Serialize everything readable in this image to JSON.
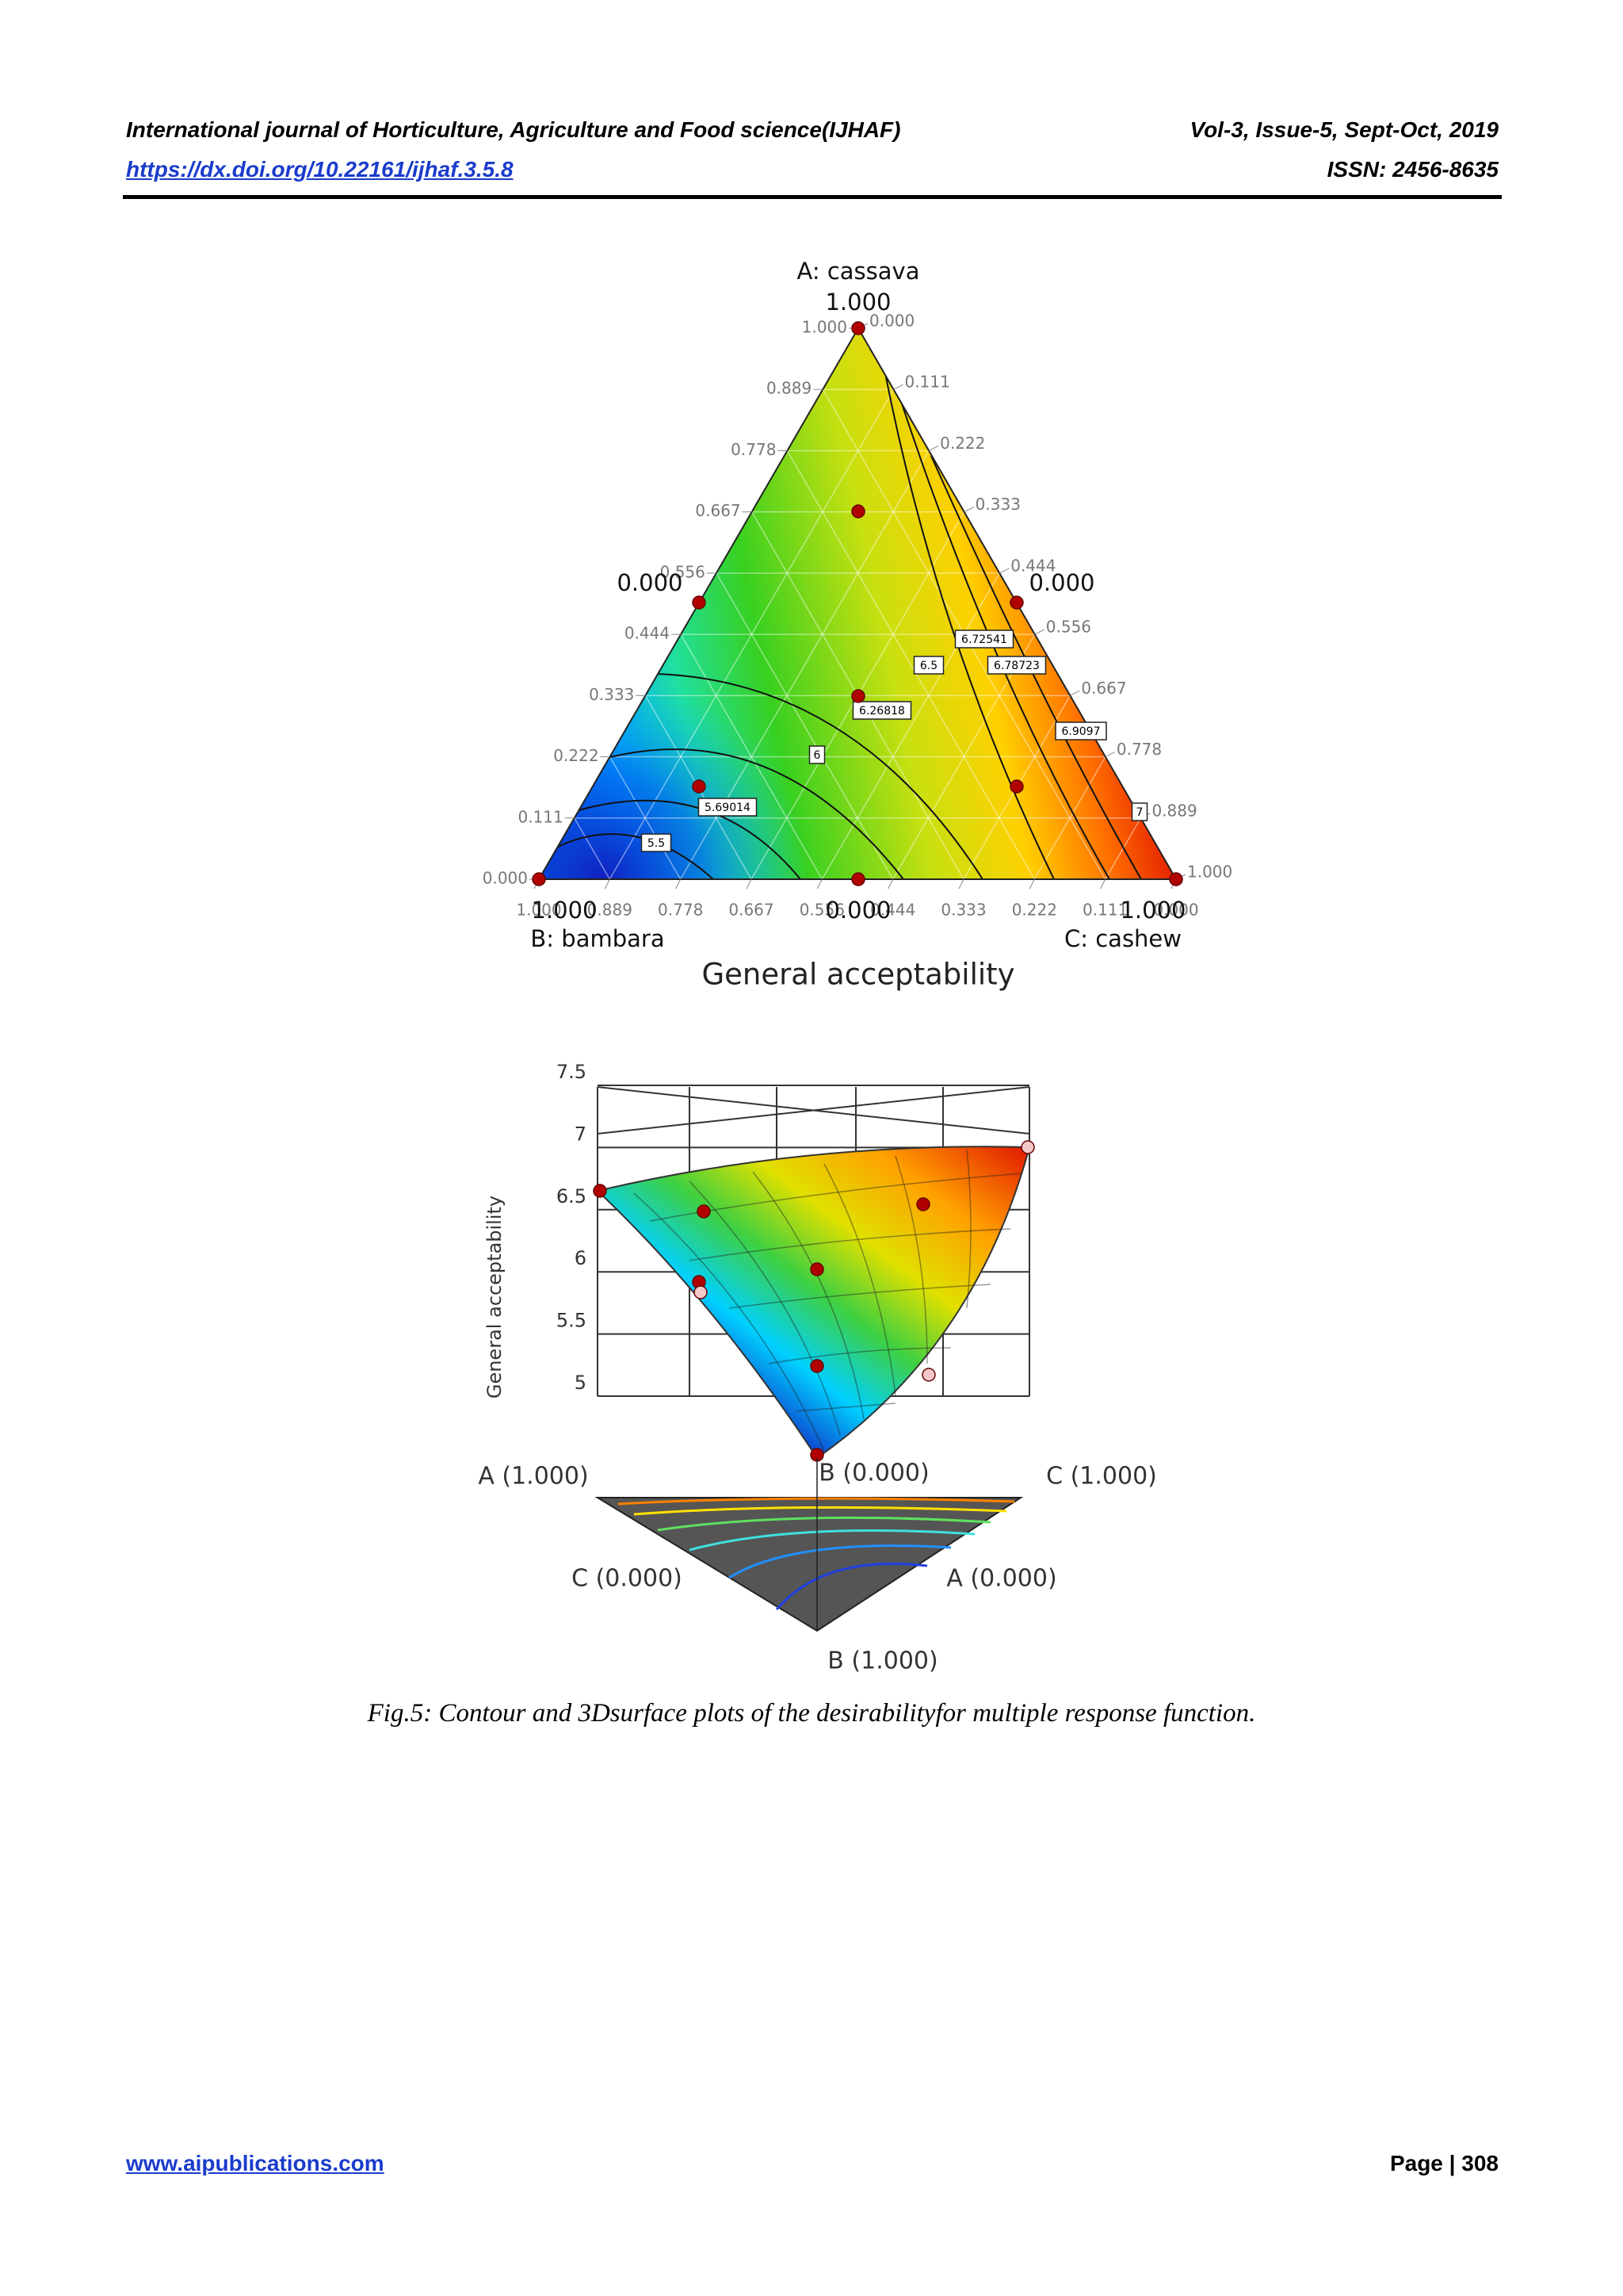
{
  "header": {
    "journal": "International journal of Horticulture, Agriculture and Food science(IJHAF)",
    "volume": "Vol-3, Issue-5, Sept-Oct, 2019",
    "doi": "https://dx.doi.org/10.22161/ijhaf.3.5.8",
    "issn": "ISSN: 2456-8635"
  },
  "figure": {
    "ternary": {
      "axis_a": "A: cassava",
      "axis_b": "B: bambara",
      "axis_c": "C: cashew",
      "vertex_max": "1.000",
      "vertex_min": "0.000",
      "ticks": [
        "0.000",
        "0.111",
        "0.222",
        "0.333",
        "0.444",
        "0.556",
        "0.667",
        "0.778",
        "0.889",
        "1.000"
      ],
      "contour_labels": [
        "6.72541",
        "6.5",
        "6.78723",
        "6.26818",
        "6.9097",
        "6",
        "7",
        "5.69014",
        "5.5"
      ],
      "title": "General acceptability"
    },
    "surface": {
      "y_label": "General acceptability",
      "yticks": [
        "5",
        "5.5",
        "6",
        "6.5",
        "7",
        "7.5"
      ],
      "corner_labels": [
        "A (1.000)",
        "B (0.000)",
        "C (1.000)",
        "C (0.000)",
        "A (0.000)",
        "B (1.000)"
      ]
    },
    "caption": "Fig.5: Contour and 3Dsurface plots of the desirabilityfor multiple response function."
  },
  "footer": {
    "website": "www.aipublications.com",
    "page": "Page | 308"
  }
}
